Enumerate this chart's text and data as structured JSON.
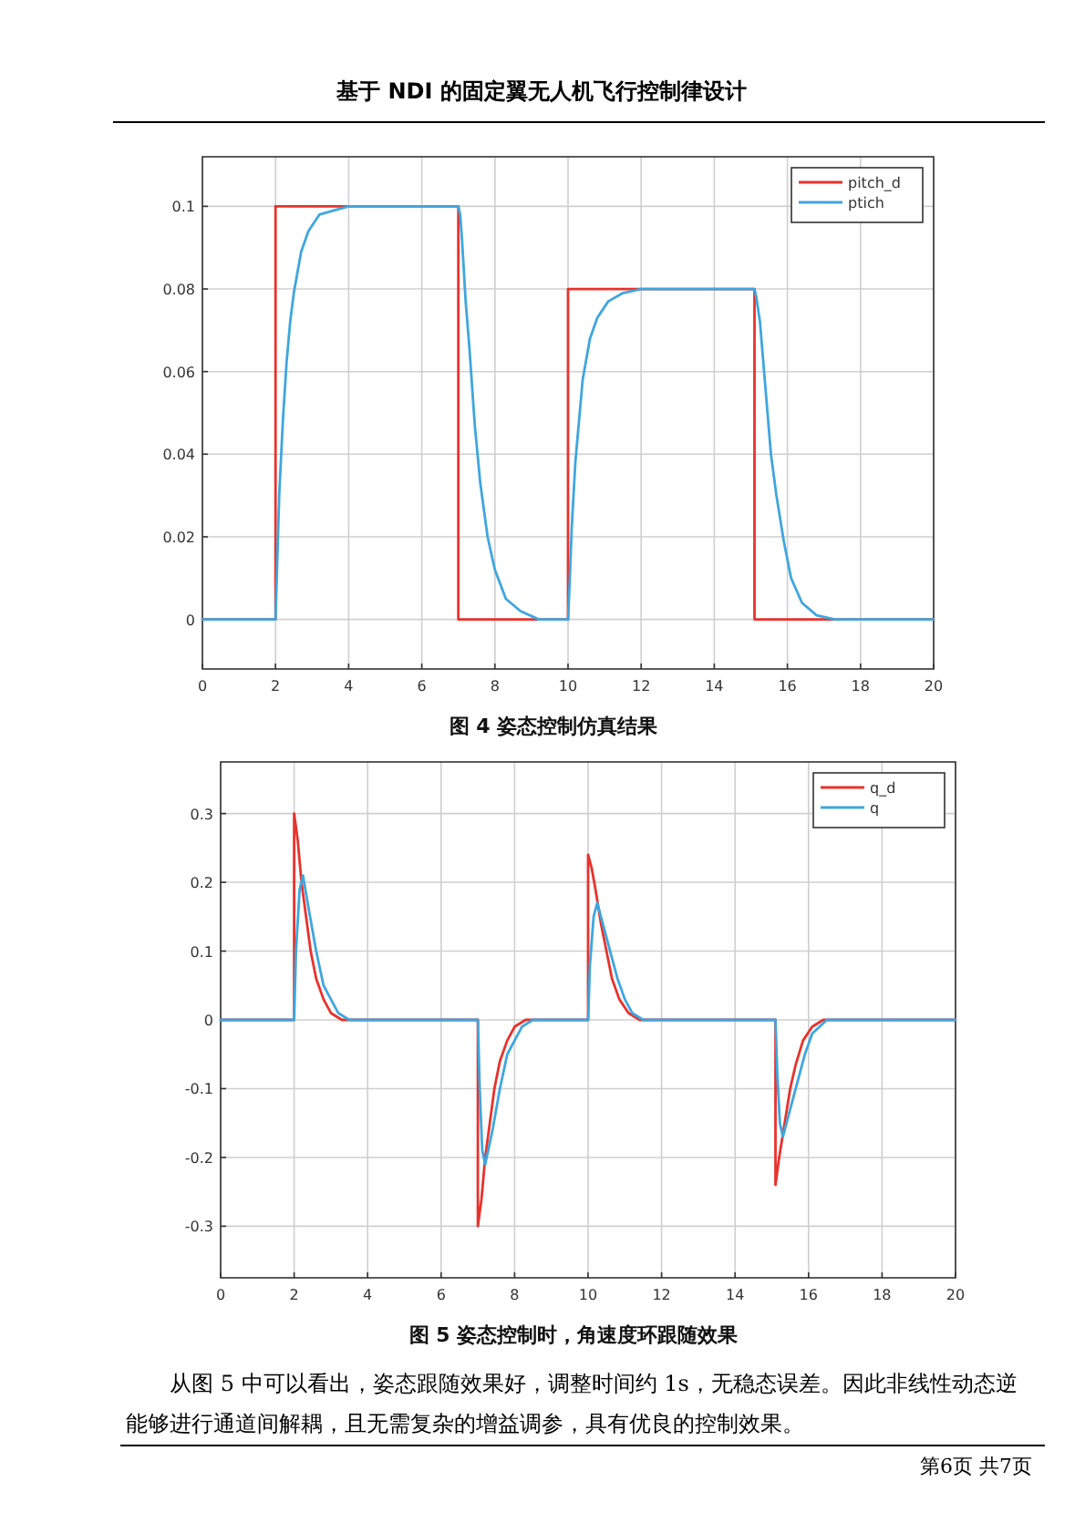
{
  "chart_data": [
    {
      "type": "line",
      "title": "图 4   姿态控制仿真结果",
      "annotations": [
        "基于 NDI 的固定翼无人机飞行控制律设计"
      ],
      "xlim": [
        0,
        20
      ],
      "xticks": [
        0,
        2,
        4,
        6,
        8,
        10,
        12,
        14,
        16,
        18,
        20
      ],
      "ylim": [
        -0.012,
        0.112
      ],
      "yticks": [
        0,
        0.02,
        0.04,
        0.06,
        0.08,
        0.1
      ],
      "grid": true,
      "legend": "top right",
      "series": [
        {
          "name": "pitch_d",
          "color": "#e8322c",
          "x": [
            0,
            2,
            2,
            7,
            7,
            10,
            10,
            15.1,
            15.1,
            20
          ],
          "values": [
            0,
            0,
            0.1,
            0.1,
            0,
            0,
            0.08,
            0.08,
            0,
            0
          ]
        },
        {
          "name": "ptich",
          "color": "#3fa6de",
          "x": [
            0,
            2,
            2.05,
            2.1,
            2.2,
            2.3,
            2.4,
            2.5,
            2.7,
            2.9,
            3.2,
            3.6,
            4,
            7,
            7.05,
            7.1,
            7.2,
            7.3,
            7.45,
            7.6,
            7.8,
            8,
            8.3,
            8.7,
            9.2,
            10,
            10.05,
            10.1,
            10.2,
            10.4,
            10.6,
            10.8,
            11.1,
            11.5,
            12,
            15.1,
            15.15,
            15.25,
            15.4,
            15.55,
            15.7,
            15.9,
            16.1,
            16.4,
            16.8,
            17.3,
            20
          ],
          "values": [
            0,
            0,
            0.015,
            0.03,
            0.048,
            0.062,
            0.072,
            0.079,
            0.089,
            0.094,
            0.098,
            0.099,
            0.1,
            0.1,
            0.098,
            0.092,
            0.077,
            0.066,
            0.047,
            0.033,
            0.02,
            0.012,
            0.005,
            0.002,
            0,
            0,
            0.01,
            0.022,
            0.038,
            0.058,
            0.068,
            0.073,
            0.077,
            0.079,
            0.08,
            0.08,
            0.078,
            0.072,
            0.056,
            0.04,
            0.03,
            0.019,
            0.01,
            0.004,
            0.001,
            0,
            0
          ]
        }
      ]
    },
    {
      "type": "line",
      "title": "图 5  姿态控制时，角速度环跟随效果",
      "annotations": [
        "从图 5 中可以看出，姿态跟随效果好，调整时间约 1s，无稳态误差。因此非线性动态逆能够进行通道间解耦，且无需复杂的增益调参，具有优良的控制效果。",
        "第6页  共7页"
      ],
      "xlim": [
        0,
        20
      ],
      "xticks": [
        0,
        2,
        4,
        6,
        8,
        10,
        12,
        14,
        16,
        18,
        20
      ],
      "ylim": [
        -0.375,
        0.375
      ],
      "yticks": [
        -0.3,
        -0.2,
        -0.1,
        0,
        0.1,
        0.2,
        0.3
      ],
      "grid": true,
      "legend": "top right",
      "series": [
        {
          "name": "q_d",
          "color": "#e8322c",
          "x": [
            0,
            2,
            2,
            2.1,
            2.2,
            2.35,
            2.45,
            2.6,
            2.8,
            3,
            3.3,
            7,
            7,
            7.1,
            7.2,
            7.35,
            7.45,
            7.6,
            7.8,
            8,
            8.3,
            10,
            10,
            10.1,
            10.2,
            10.35,
            10.5,
            10.65,
            10.85,
            11.1,
            11.4,
            15.1,
            15.1,
            15.2,
            15.35,
            15.5,
            15.65,
            15.85,
            16.1,
            16.4,
            20
          ],
          "values": [
            0,
            0,
            0.3,
            0.26,
            0.2,
            0.14,
            0.1,
            0.06,
            0.03,
            0.01,
            0,
            0,
            -0.3,
            -0.26,
            -0.2,
            -0.14,
            -0.1,
            -0.06,
            -0.03,
            -0.01,
            0,
            0,
            0.24,
            0.22,
            0.19,
            0.14,
            0.1,
            0.06,
            0.03,
            0.01,
            0,
            0,
            -0.24,
            -0.2,
            -0.15,
            -0.1,
            -0.065,
            -0.03,
            -0.01,
            0,
            0
          ]
        },
        {
          "name": "q",
          "color": "#3fa6de",
          "x": [
            0,
            2,
            2.05,
            2.15,
            2.24,
            2.4,
            2.6,
            2.8,
            3,
            3.2,
            3.5,
            7,
            7.05,
            7.12,
            7.2,
            7.4,
            7.6,
            7.8,
            8,
            8.2,
            8.5,
            10,
            10.05,
            10.15,
            10.25,
            10.4,
            10.6,
            10.8,
            11,
            11.2,
            11.5,
            15.1,
            15.15,
            15.22,
            15.3,
            15.5,
            15.7,
            15.9,
            16.1,
            16.5,
            20
          ],
          "values": [
            0,
            0,
            0.1,
            0.19,
            0.21,
            0.16,
            0.1,
            0.05,
            0.03,
            0.01,
            0,
            0,
            -0.1,
            -0.19,
            -0.21,
            -0.16,
            -0.1,
            -0.05,
            -0.03,
            -0.01,
            0,
            0,
            0.08,
            0.15,
            0.17,
            0.14,
            0.1,
            0.06,
            0.03,
            0.01,
            0,
            0,
            -0.08,
            -0.15,
            -0.17,
            -0.13,
            -0.09,
            -0.05,
            -0.02,
            0,
            0
          ]
        }
      ]
    }
  ]
}
